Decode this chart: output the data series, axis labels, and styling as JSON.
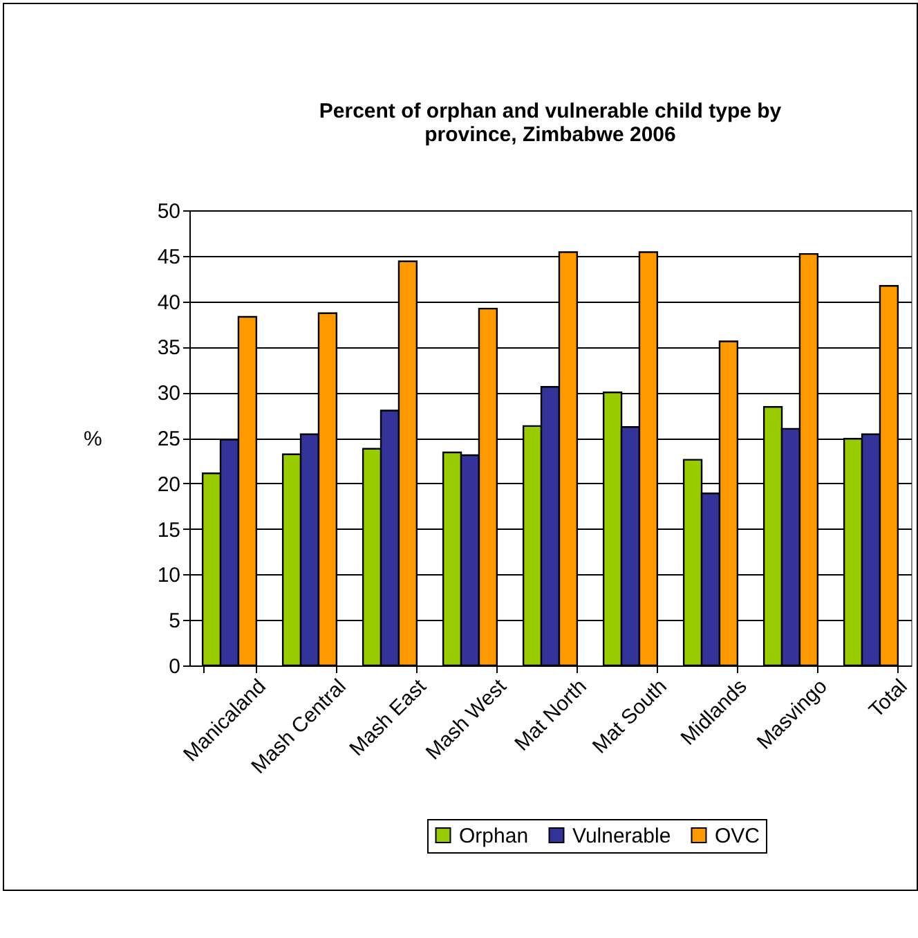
{
  "chart_data": {
    "type": "bar",
    "title": "Percent of orphan and vulnerable child type by province, Zimbabwe 2006",
    "ylabel": "%",
    "categories": [
      "Manicaland",
      "Mash Central",
      "Mash East",
      "Mash West",
      "Mat North",
      "Mat South",
      "Midlands",
      "Masvingo",
      "Total"
    ],
    "series": [
      {
        "name": "Orphan",
        "color": "#99cc00",
        "values": [
          21.1,
          23.2,
          23.8,
          23.4,
          26.3,
          30.0,
          22.6,
          28.4,
          24.9
        ]
      },
      {
        "name": "Vulnerable",
        "color": "#333399",
        "values": [
          24.8,
          25.4,
          28.0,
          23.1,
          30.6,
          26.2,
          18.9,
          26.0,
          25.4
        ]
      },
      {
        "name": "OVC",
        "color": "#ff9900",
        "values": [
          38.3,
          38.7,
          44.4,
          39.2,
          45.4,
          45.4,
          35.6,
          45.2,
          41.7
        ]
      }
    ],
    "ylim": [
      0,
      50
    ],
    "yticks": [
      0,
      5,
      10,
      15,
      20,
      25,
      30,
      35,
      40,
      45,
      50
    ],
    "grid": "y",
    "legend": "bottom"
  }
}
